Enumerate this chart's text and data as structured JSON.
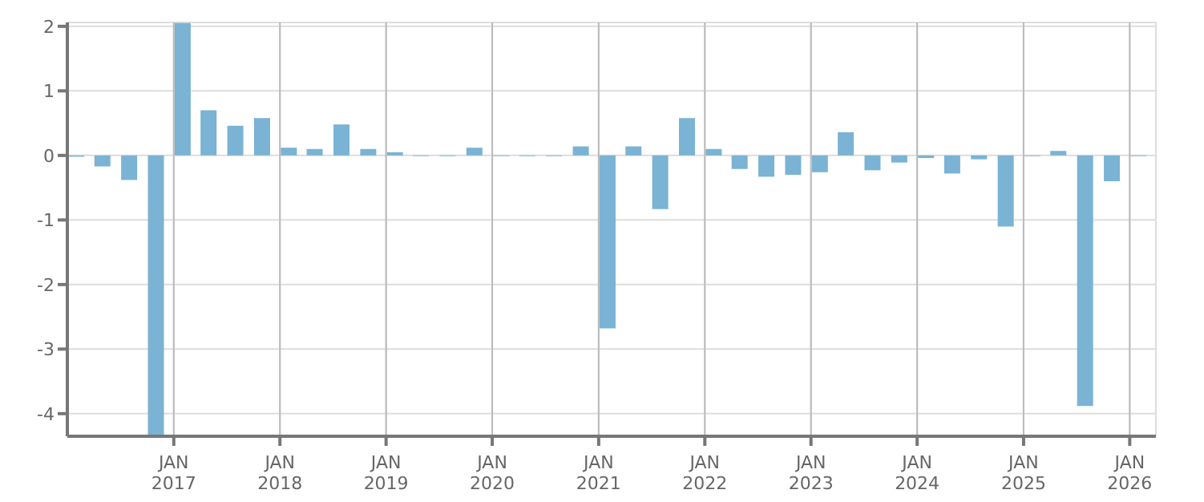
{
  "chart_data": {
    "type": "bar",
    "x": [
      "2016-02",
      "2016-05",
      "2016-08",
      "2016-11",
      "2017-02",
      "2017-05",
      "2017-08",
      "2017-11",
      "2018-02",
      "2018-05",
      "2018-08",
      "2018-11",
      "2019-02",
      "2019-05",
      "2019-08",
      "2019-11",
      "2020-02",
      "2020-05",
      "2020-08",
      "2020-11",
      "2021-02",
      "2021-05",
      "2021-08",
      "2021-11",
      "2022-02",
      "2022-05",
      "2022-08",
      "2022-11",
      "2023-02",
      "2023-05",
      "2023-08",
      "2023-11",
      "2024-02",
      "2024-05",
      "2024-08",
      "2024-11",
      "2025-02",
      "2025-05",
      "2025-08",
      "2025-11",
      "2026-02"
    ],
    "values": [
      -0.02,
      -0.17,
      -0.38,
      -4.35,
      2.05,
      0.7,
      0.46,
      0.58,
      0.12,
      0.1,
      0.48,
      0.1,
      0.05,
      -0.01,
      -0.01,
      0.12,
      -0.01,
      -0.01,
      -0.01,
      0.14,
      -2.68,
      0.14,
      -0.83,
      0.58,
      0.1,
      -0.21,
      -0.33,
      -0.3,
      -0.26,
      0.36,
      -0.23,
      -0.11,
      -0.04,
      -0.28,
      -0.06,
      -1.1,
      -0.01,
      0.07,
      -3.88,
      -0.4,
      -0.01
    ],
    "color": "#7ab3d4",
    "xlim": [
      "2016-01",
      "2026-04"
    ],
    "xticks": [
      {
        "value": "2017-01",
        "label": "JAN 2017"
      },
      {
        "value": "2018-01",
        "label": "JAN 2018"
      },
      {
        "value": "2019-01",
        "label": "JAN 2019"
      },
      {
        "value": "2020-01",
        "label": "JAN 2020"
      },
      {
        "value": "2021-01",
        "label": "JAN 2021"
      },
      {
        "value": "2022-01",
        "label": "JAN 2022"
      },
      {
        "value": "2023-01",
        "label": "JAN 2023"
      },
      {
        "value": "2024-01",
        "label": "JAN 2024"
      },
      {
        "value": "2025-01",
        "label": "JAN 2025"
      },
      {
        "value": "2026-01",
        "label": "JAN 2026"
      }
    ],
    "ylim": [
      -4.35,
      2.06
    ],
    "yticks": [
      -4,
      -3,
      -2,
      -1,
      0,
      1,
      2
    ],
    "grid": true
  }
}
